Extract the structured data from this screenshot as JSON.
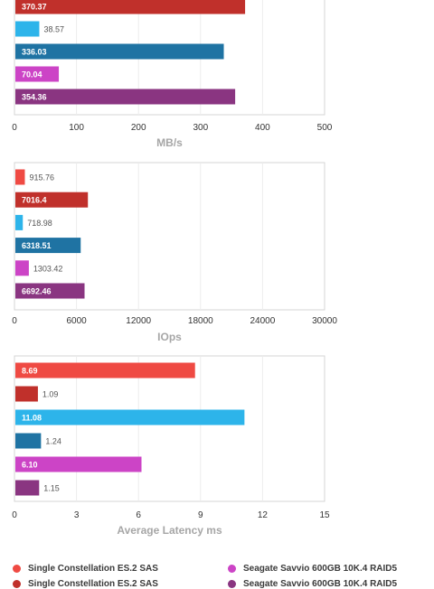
{
  "chart_data": [
    {
      "type": "bar",
      "orientation": "horizontal",
      "xlabel": "MB/s",
      "xlim": [
        0,
        500
      ],
      "xticks": [
        "0",
        "100",
        "200",
        "300",
        "400",
        "500"
      ],
      "bars": [
        {
          "value": 370.37,
          "label": "370.37",
          "color": "#c0302b",
          "label_inside": true
        },
        {
          "value": 38.57,
          "label": "38.57",
          "color": "#2db4ea",
          "label_inside": false
        },
        {
          "value": 336.03,
          "label": "336.03",
          "color": "#1f73a3",
          "label_inside": true
        },
        {
          "value": 70.04,
          "label": "70.04",
          "color": "#cc44c6",
          "label_inside": true
        },
        {
          "value": 354.36,
          "label": "354.36",
          "color": "#8a3581",
          "label_inside": true
        }
      ],
      "cropped_top": true
    },
    {
      "type": "bar",
      "orientation": "horizontal",
      "xlabel": "IOps",
      "xlim": [
        0,
        30000
      ],
      "xticks": [
        "0",
        "6000",
        "12000",
        "18000",
        "24000",
        "30000"
      ],
      "bars": [
        {
          "value": 915.76,
          "label": "915.76",
          "color": "#ef4a43",
          "label_inside": false
        },
        {
          "value": 7016.4,
          "label": "7016.4",
          "color": "#c0302b",
          "label_inside": true
        },
        {
          "value": 718.98,
          "label": "718.98",
          "color": "#2db4ea",
          "label_inside": false
        },
        {
          "value": 6318.51,
          "label": "6318.51",
          "color": "#1f73a3",
          "label_inside": true
        },
        {
          "value": 1303.42,
          "label": "1303.42",
          "color": "#cc44c6",
          "label_inside": false
        },
        {
          "value": 6692.46,
          "label": "6692.46",
          "color": "#8a3581",
          "label_inside": true
        }
      ]
    },
    {
      "type": "bar",
      "orientation": "horizontal",
      "xlabel": "Average Latency ms",
      "xlim": [
        0,
        15
      ],
      "xticks": [
        "0",
        "3",
        "6",
        "9",
        "12",
        "15"
      ],
      "bars": [
        {
          "value": 8.69,
          "label": "8.69",
          "color": "#ef4a43",
          "label_inside": true
        },
        {
          "value": 1.09,
          "label": "1.09",
          "color": "#c0302b",
          "label_inside": false
        },
        {
          "value": 11.08,
          "label": "11.08",
          "color": "#2db4ea",
          "label_inside": true
        },
        {
          "value": 1.24,
          "label": "1.24",
          "color": "#1f73a3",
          "label_inside": false
        },
        {
          "value": 6.1,
          "label": "6.10",
          "color": "#cc44c6",
          "label_inside": true
        },
        {
          "value": 1.15,
          "label": "1.15",
          "color": "#8a3581",
          "label_inside": false
        }
      ]
    }
  ],
  "legend": [
    {
      "label": "Single Constellation ES.2 SAS",
      "color": "#ef4a43"
    },
    {
      "label": "Seagate Savvio 600GB 10K.4 RAID5",
      "color": "#cc44c6"
    },
    {
      "label": "Single Constellation ES.2 SAS",
      "color": "#c0302b"
    },
    {
      "label": "Seagate Savvio 600GB 10K.4 RAID5",
      "color": "#8a3581"
    }
  ]
}
